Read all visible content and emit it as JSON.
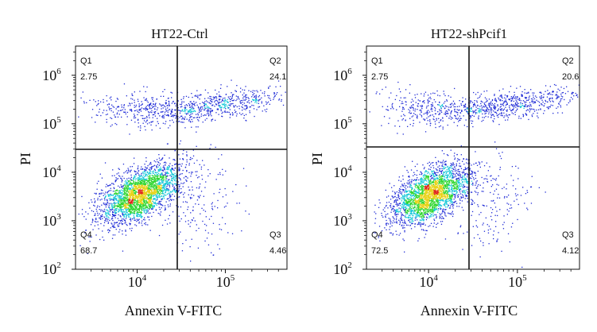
{
  "chart_data": [
    {
      "type": "scatter",
      "title": "HT22-Ctrl",
      "xlabel": "Annexin V-FITC",
      "ylabel": "PI",
      "xscale": "log",
      "yscale": "log",
      "xlim": [
        2000,
        500000
      ],
      "ylim": [
        100,
        4000000
      ],
      "x_ticks": [
        {
          "value": 10000,
          "base": "10",
          "exp": "4"
        },
        {
          "value": 100000,
          "base": "10",
          "exp": "5"
        }
      ],
      "y_ticks": [
        {
          "value": 100,
          "base": "10",
          "exp": "2"
        },
        {
          "value": 1000,
          "base": "10",
          "exp": "3"
        },
        {
          "value": 10000,
          "base": "10",
          "exp": "4"
        },
        {
          "value": 100000,
          "base": "10",
          "exp": "5"
        },
        {
          "value": 1000000,
          "base": "10",
          "exp": "6"
        }
      ],
      "gate": {
        "x": 28000,
        "y": 33000
      },
      "quadrants": [
        {
          "name": "Q1",
          "value": "2.75",
          "corner": "top-left"
        },
        {
          "name": "Q2",
          "value": "24.1",
          "corner": "top-right"
        },
        {
          "name": "Q3",
          "value": "4.46",
          "corner": "bottom-right"
        },
        {
          "name": "Q4",
          "value": "68.7",
          "corner": "bottom-left"
        }
      ],
      "grid": false
    },
    {
      "type": "scatter",
      "title": "HT22-shPcif1",
      "xlabel": "Annexin V-FITC",
      "ylabel": "PI",
      "xscale": "log",
      "yscale": "log",
      "xlim": [
        2000,
        500000
      ],
      "ylim": [
        100,
        4000000
      ],
      "x_ticks": [
        {
          "value": 10000,
          "base": "10",
          "exp": "4"
        },
        {
          "value": 100000,
          "base": "10",
          "exp": "5"
        }
      ],
      "y_ticks": [
        {
          "value": 100,
          "base": "10",
          "exp": "2"
        },
        {
          "value": 1000,
          "base": "10",
          "exp": "3"
        },
        {
          "value": 10000,
          "base": "10",
          "exp": "4"
        },
        {
          "value": 100000,
          "base": "10",
          "exp": "5"
        },
        {
          "value": 1000000,
          "base": "10",
          "exp": "6"
        }
      ],
      "gate": {
        "x": 28000,
        "y": 33000
      },
      "quadrants": [
        {
          "name": "Q1",
          "value": "2.75",
          "corner": "top-left"
        },
        {
          "name": "Q2",
          "value": "20.6",
          "corner": "top-right"
        },
        {
          "name": "Q3",
          "value": "4.12",
          "corner": "bottom-right"
        },
        {
          "name": "Q4",
          "value": "72.5",
          "corner": "bottom-left"
        }
      ],
      "grid": false
    }
  ],
  "colors": {
    "density_low": "#1f2bd6",
    "density_mid": "#16c8d8",
    "density_high": "#2fd62f",
    "density_peak": "#e8d21a",
    "density_max": "#e0261c",
    "axes": "#111111"
  }
}
